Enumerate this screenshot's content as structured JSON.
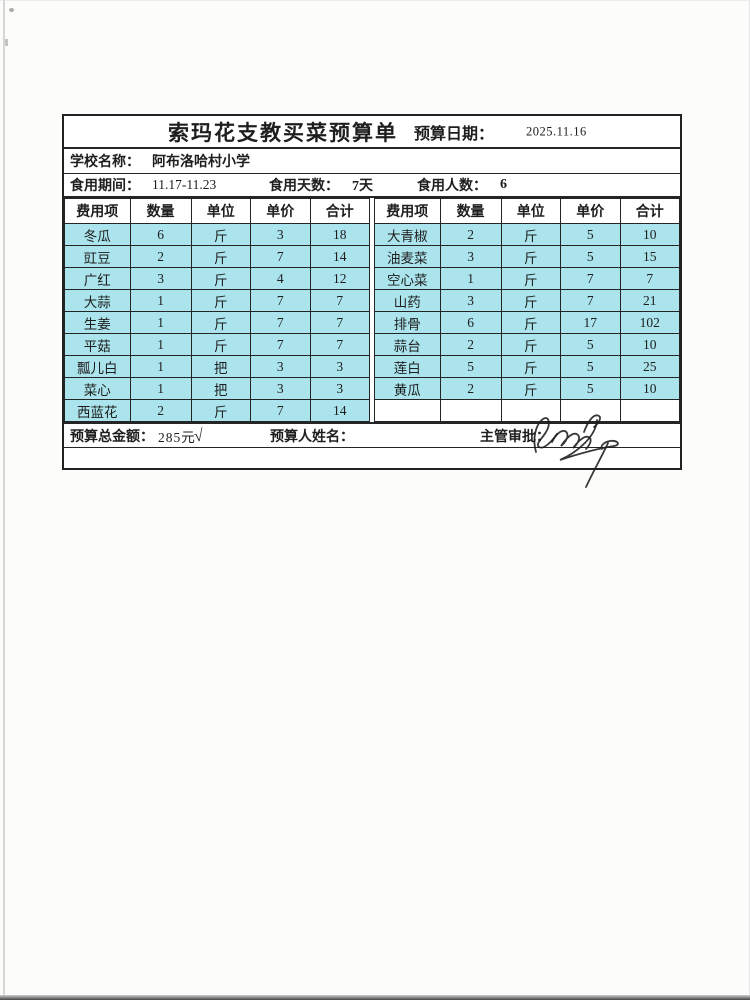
{
  "document": {
    "title": "索玛花支教买菜预算单",
    "date_label": "预算日期：",
    "date_value": "2025.11.16",
    "school_label": "学校名称：",
    "school_value": "阿布洛哈村小学",
    "period_label": "食用期间：",
    "period_value": "11.17-11.23",
    "days_label": "食用天数：",
    "days_value": "7天",
    "people_label": "食用人数：",
    "people_value": "6",
    "total_label": "预算总金额：",
    "total_value": "285元",
    "total_checkmark": "√",
    "preparer_label": "预算人姓名：",
    "approver_label": "主管审批："
  },
  "table": {
    "headers": [
      "费用项",
      "数量",
      "单位",
      "单价",
      "合计"
    ],
    "left_rows": [
      [
        "冬瓜",
        "6",
        "斤",
        "3",
        "18"
      ],
      [
        "豇豆",
        "2",
        "斤",
        "7",
        "14"
      ],
      [
        "广红",
        "3",
        "斤",
        "4",
        "12"
      ],
      [
        "大蒜",
        "1",
        "斤",
        "7",
        "7"
      ],
      [
        "生姜",
        "1",
        "斤",
        "7",
        "7"
      ],
      [
        "平菇",
        "1",
        "斤",
        "7",
        "7"
      ],
      [
        "瓢儿白",
        "1",
        "把",
        "3",
        "3"
      ],
      [
        "菜心",
        "1",
        "把",
        "3",
        "3"
      ],
      [
        "西蓝花",
        "2",
        "斤",
        "7",
        "14"
      ]
    ],
    "right_rows": [
      [
        "大青椒",
        "2",
        "斤",
        "5",
        "10"
      ],
      [
        "油麦菜",
        "3",
        "斤",
        "5",
        "15"
      ],
      [
        "空心菜",
        "1",
        "斤",
        "7",
        "7"
      ],
      [
        "山药",
        "3",
        "斤",
        "7",
        "21"
      ],
      [
        "排骨",
        "6",
        "斤",
        "17",
        "102"
      ],
      [
        "蒜台",
        "2",
        "斤",
        "5",
        "10"
      ],
      [
        "莲白",
        "5",
        "斤",
        "5",
        "25"
      ],
      [
        "黄瓜",
        "2",
        "斤",
        "5",
        "10"
      ],
      [
        "",
        "",
        "",
        "",
        ""
      ]
    ]
  },
  "colors": {
    "cell_highlight": "#abe4ec",
    "border": "#252525",
    "paper": "#fcfcfb"
  }
}
